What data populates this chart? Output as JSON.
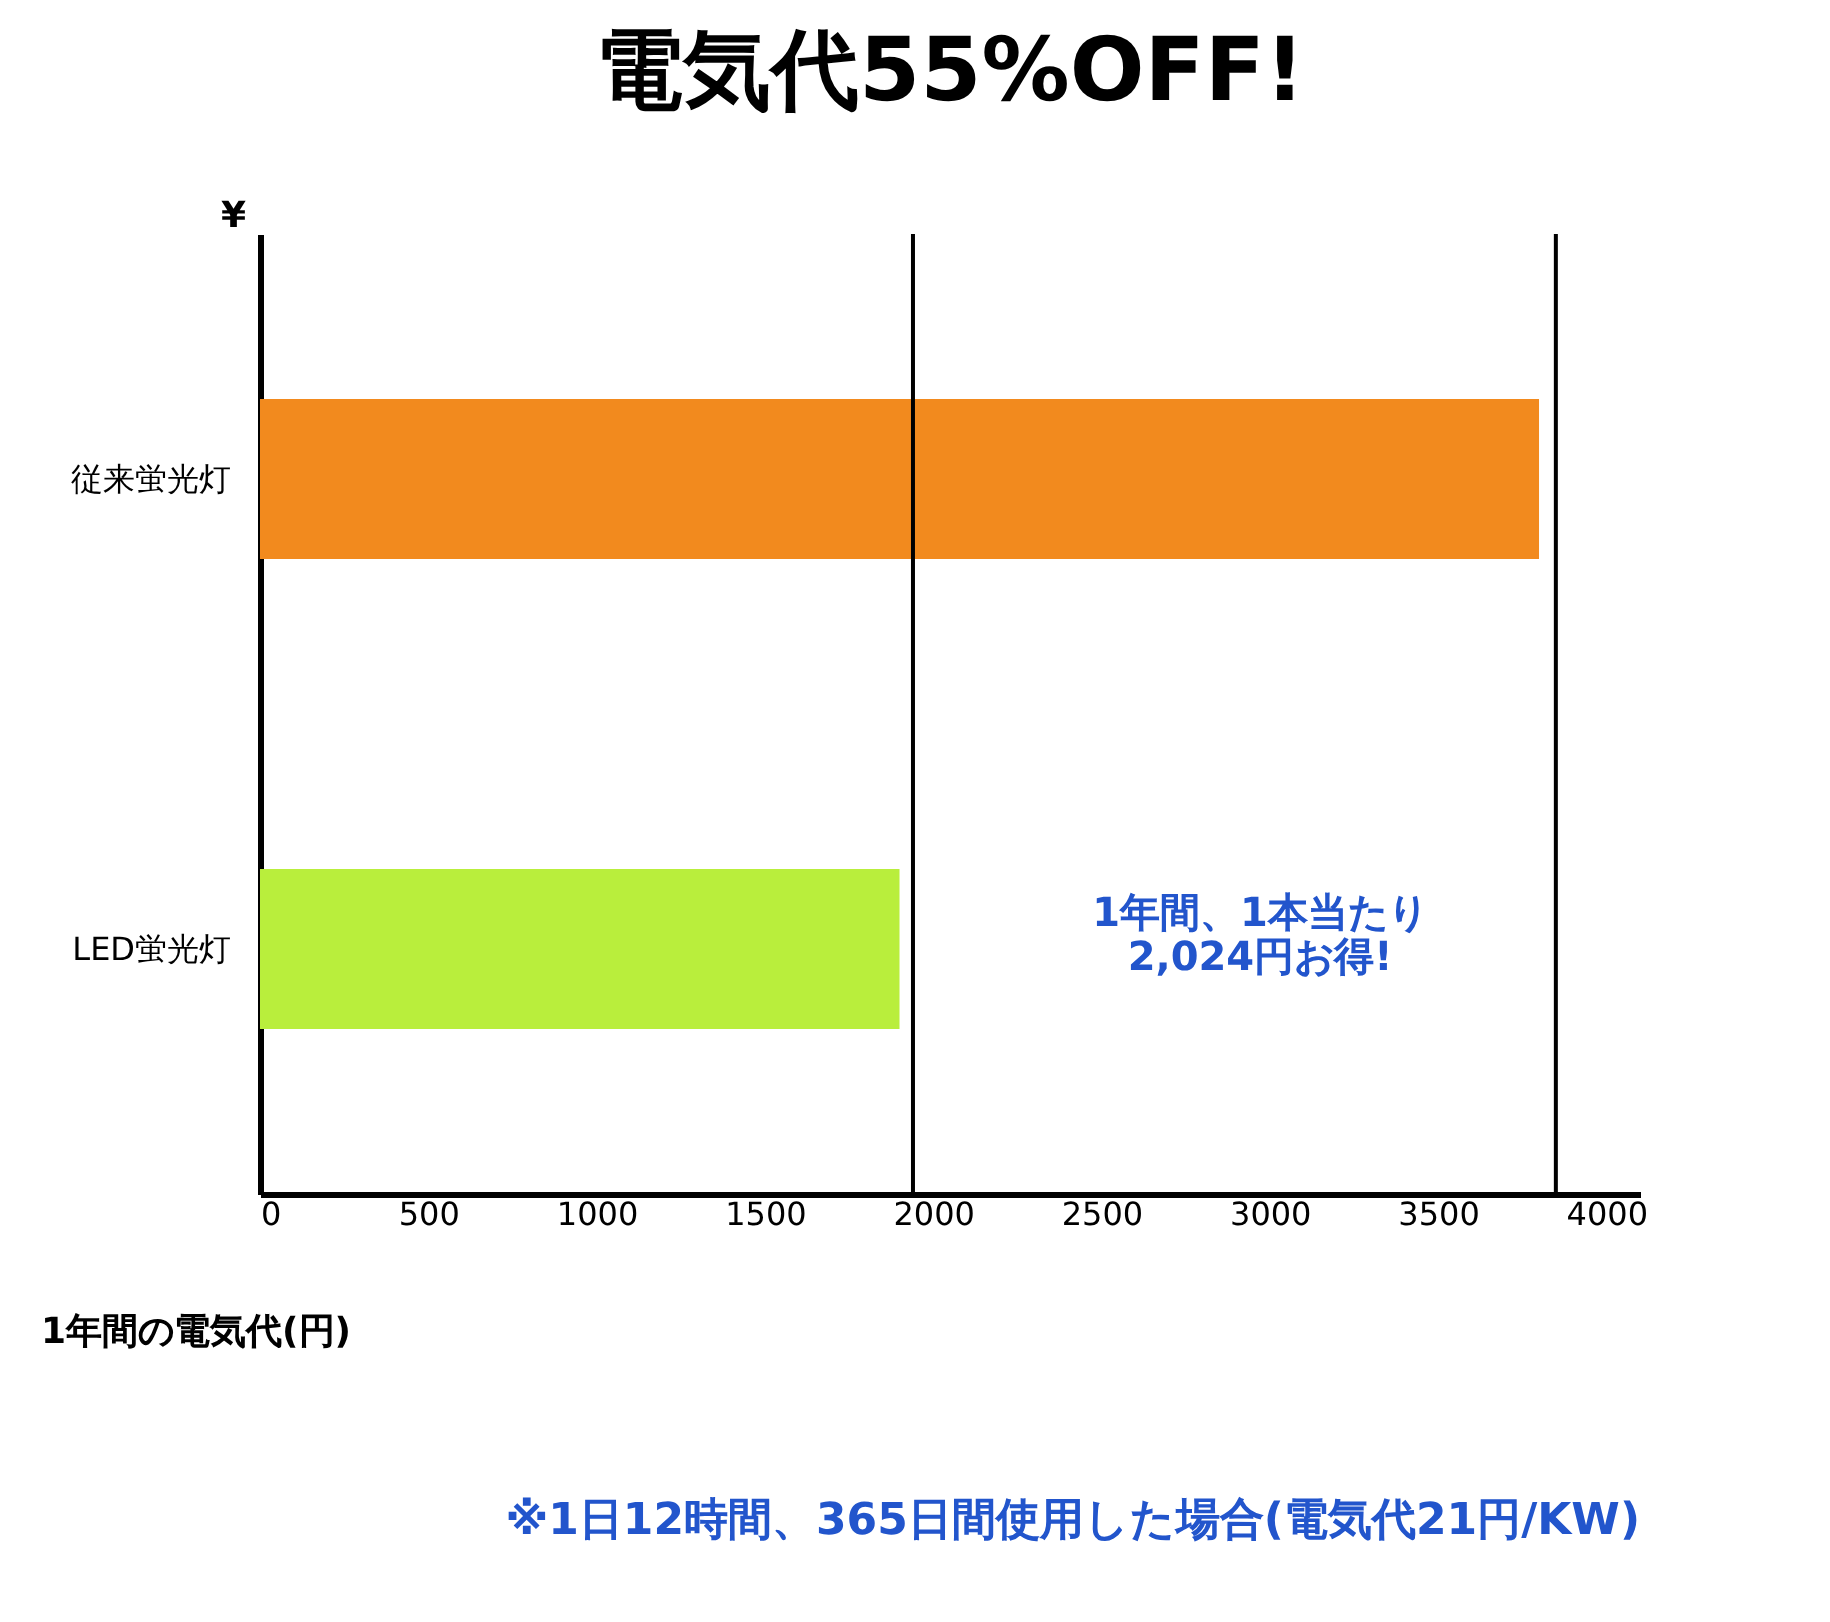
{
  "chart_data": {
    "type": "bar",
    "orientation": "horizontal",
    "title": "電気代55%OFF!",
    "categories": [
      "従来蛍光灯",
      "LED蛍光灯"
    ],
    "values": [
      3800,
      1900
    ],
    "colors": [
      "#f28a1e",
      "#b9ee3c"
    ],
    "xlabel": "1年間の電気代(円)",
    "ylabel": "¥",
    "xlim": [
      0,
      4100
    ],
    "xticks": [
      0,
      500,
      1000,
      1500,
      2000,
      2500,
      3000,
      3500,
      4000
    ],
    "grid": false,
    "ref_lines": [
      {
        "axis": "x",
        "value": 1940,
        "label": null
      },
      {
        "axis": "x",
        "value": 3850,
        "label": null
      }
    ],
    "annotations": [
      "1年間、1本当たり\n2,024円お得!",
      "※1日12時間、365日間使用した場合(電気代21円/KW)"
    ]
  }
}
